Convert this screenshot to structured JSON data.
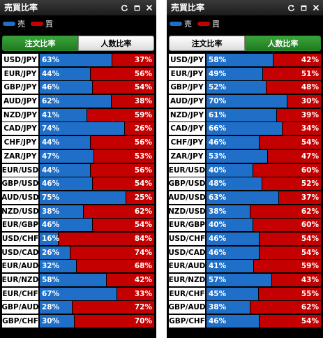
{
  "colors": {
    "sell": "#1f6fc9",
    "buy": "#c50000",
    "active_tab": "#2a8a2a"
  },
  "legend": {
    "sell_label": "売",
    "buy_label": "買"
  },
  "panels": [
    {
      "title": "売買比率",
      "tabs": [
        {
          "label": "注文比率",
          "active": true
        },
        {
          "label": "人数比率",
          "active": false
        }
      ],
      "rows": [
        {
          "pair": "USD/JPY",
          "sell": 63,
          "buy": 37
        },
        {
          "pair": "EUR/JPY",
          "sell": 44,
          "buy": 56
        },
        {
          "pair": "GBP/JPY",
          "sell": 46,
          "buy": 54
        },
        {
          "pair": "AUD/JPY",
          "sell": 62,
          "buy": 38
        },
        {
          "pair": "NZD/JPY",
          "sell": 41,
          "buy": 59
        },
        {
          "pair": "CAD/JPY",
          "sell": 74,
          "buy": 26
        },
        {
          "pair": "CHF/JPY",
          "sell": 44,
          "buy": 56
        },
        {
          "pair": "ZAR/JPY",
          "sell": 47,
          "buy": 53
        },
        {
          "pair": "EUR/USD",
          "sell": 44,
          "buy": 56
        },
        {
          "pair": "GBP/USD",
          "sell": 46,
          "buy": 54
        },
        {
          "pair": "AUD/USD",
          "sell": 75,
          "buy": 25
        },
        {
          "pair": "NZD/USD",
          "sell": 38,
          "buy": 62
        },
        {
          "pair": "EUR/GBP",
          "sell": 46,
          "buy": 54
        },
        {
          "pair": "USD/CHF",
          "sell": 16,
          "buy": 84
        },
        {
          "pair": "USD/CAD",
          "sell": 26,
          "buy": 74
        },
        {
          "pair": "EUR/AUD",
          "sell": 32,
          "buy": 68
        },
        {
          "pair": "EUR/NZD",
          "sell": 58,
          "buy": 42
        },
        {
          "pair": "EUR/CHF",
          "sell": 67,
          "buy": 33
        },
        {
          "pair": "GBP/AUD",
          "sell": 28,
          "buy": 72
        },
        {
          "pair": "GBP/CHF",
          "sell": 30,
          "buy": 70
        }
      ]
    },
    {
      "title": "売買比率",
      "tabs": [
        {
          "label": "注文比率",
          "active": false
        },
        {
          "label": "人数比率",
          "active": true
        }
      ],
      "rows": [
        {
          "pair": "USD/JPY",
          "sell": 58,
          "buy": 42
        },
        {
          "pair": "EUR/JPY",
          "sell": 49,
          "buy": 51
        },
        {
          "pair": "GBP/JPY",
          "sell": 52,
          "buy": 48
        },
        {
          "pair": "AUD/JPY",
          "sell": 70,
          "buy": 30
        },
        {
          "pair": "NZD/JPY",
          "sell": 61,
          "buy": 39
        },
        {
          "pair": "CAD/JPY",
          "sell": 66,
          "buy": 34
        },
        {
          "pair": "CHF/JPY",
          "sell": 46,
          "buy": 54
        },
        {
          "pair": "ZAR/JPY",
          "sell": 53,
          "buy": 47
        },
        {
          "pair": "EUR/USD",
          "sell": 40,
          "buy": 60
        },
        {
          "pair": "GBP/USD",
          "sell": 48,
          "buy": 52
        },
        {
          "pair": "AUD/USD",
          "sell": 63,
          "buy": 37
        },
        {
          "pair": "NZD/USD",
          "sell": 38,
          "buy": 62
        },
        {
          "pair": "EUR/GBP",
          "sell": 40,
          "buy": 60
        },
        {
          "pair": "USD/CHF",
          "sell": 46,
          "buy": 54
        },
        {
          "pair": "USD/CAD",
          "sell": 46,
          "buy": 54
        },
        {
          "pair": "EUR/AUD",
          "sell": 41,
          "buy": 59
        },
        {
          "pair": "EUR/NZD",
          "sell": 57,
          "buy": 43
        },
        {
          "pair": "EUR/CHF",
          "sell": 45,
          "buy": 55
        },
        {
          "pair": "GBP/AUD",
          "sell": 38,
          "buy": 62
        },
        {
          "pair": "GBP/CHF",
          "sell": 46,
          "buy": 54
        }
      ]
    }
  ]
}
